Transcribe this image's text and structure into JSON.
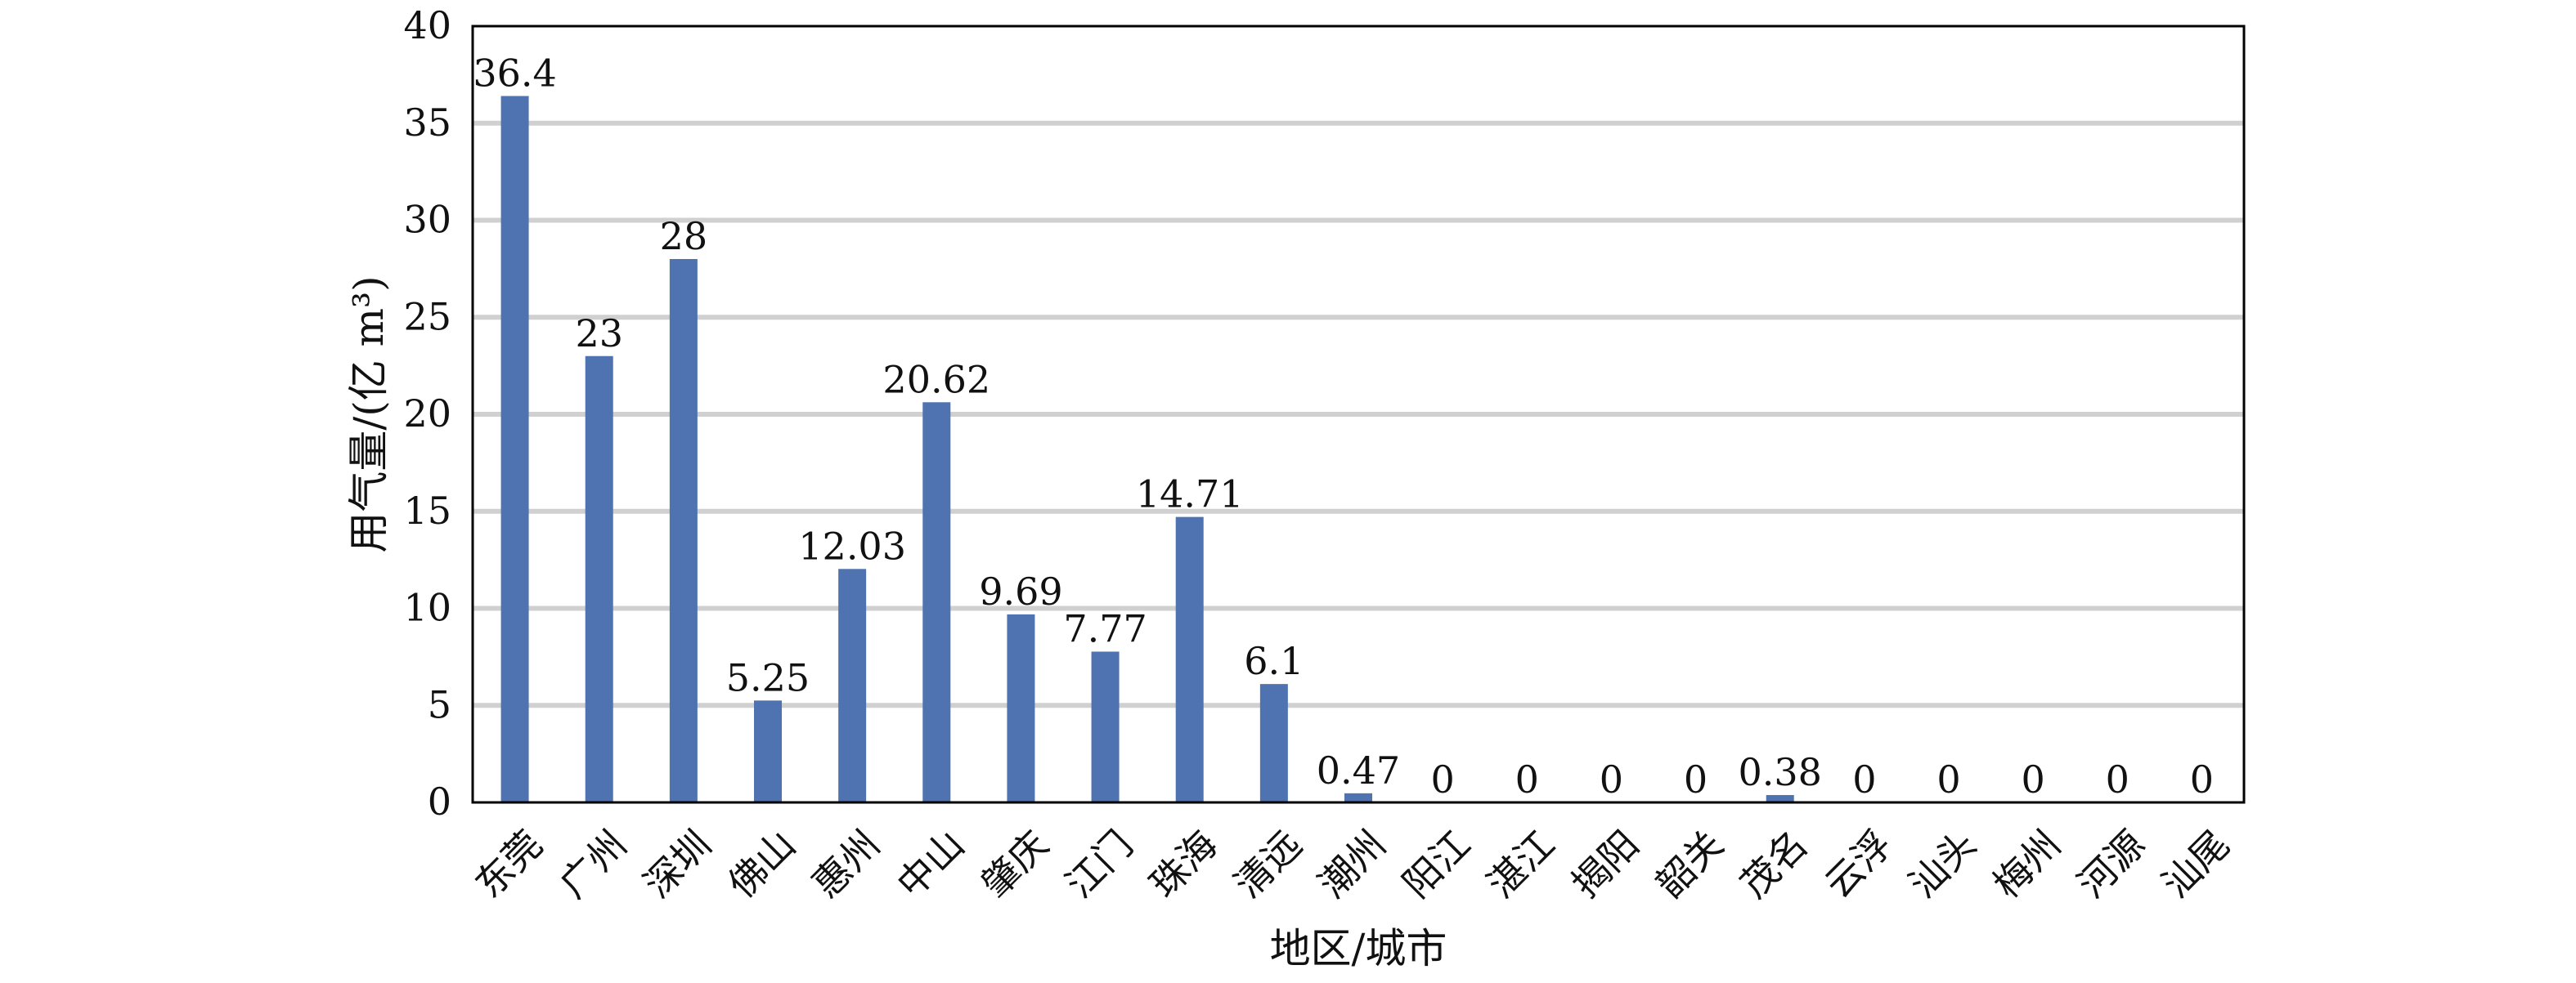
{
  "chart_data": {
    "type": "bar",
    "title": "",
    "xlabel": "地区/城市",
    "ylabel": "用气量/(亿 m³)",
    "ylim": [
      0,
      40
    ],
    "yticks": [
      0,
      5,
      10,
      15,
      20,
      25,
      30,
      35,
      40
    ],
    "grid": true,
    "legend": "none",
    "bar_color": "#4e73b0",
    "categories": [
      "东莞",
      "广州",
      "深圳",
      "佛山",
      "惠州",
      "中山",
      "肇庆",
      "江门",
      "珠海",
      "清远",
      "潮州",
      "阳江",
      "湛江",
      "揭阳",
      "韶关",
      "茂名",
      "云浮",
      "汕头",
      "梅州",
      "河源",
      "汕尾"
    ],
    "values": [
      36.4,
      23,
      28,
      5.25,
      12.03,
      20.62,
      9.69,
      7.77,
      14.71,
      6.1,
      0.47,
      0,
      0,
      0,
      0,
      0.38,
      0,
      0,
      0,
      0,
      0
    ],
    "data_labels": [
      "36.4",
      "23",
      "28",
      "5.25",
      "12.03",
      "20.62",
      "9.69",
      "7.77",
      "14.71",
      "6.1",
      "0.47",
      "0",
      "0",
      "0",
      "0",
      "0.38",
      "0",
      "0",
      "0",
      "0",
      "0"
    ]
  }
}
